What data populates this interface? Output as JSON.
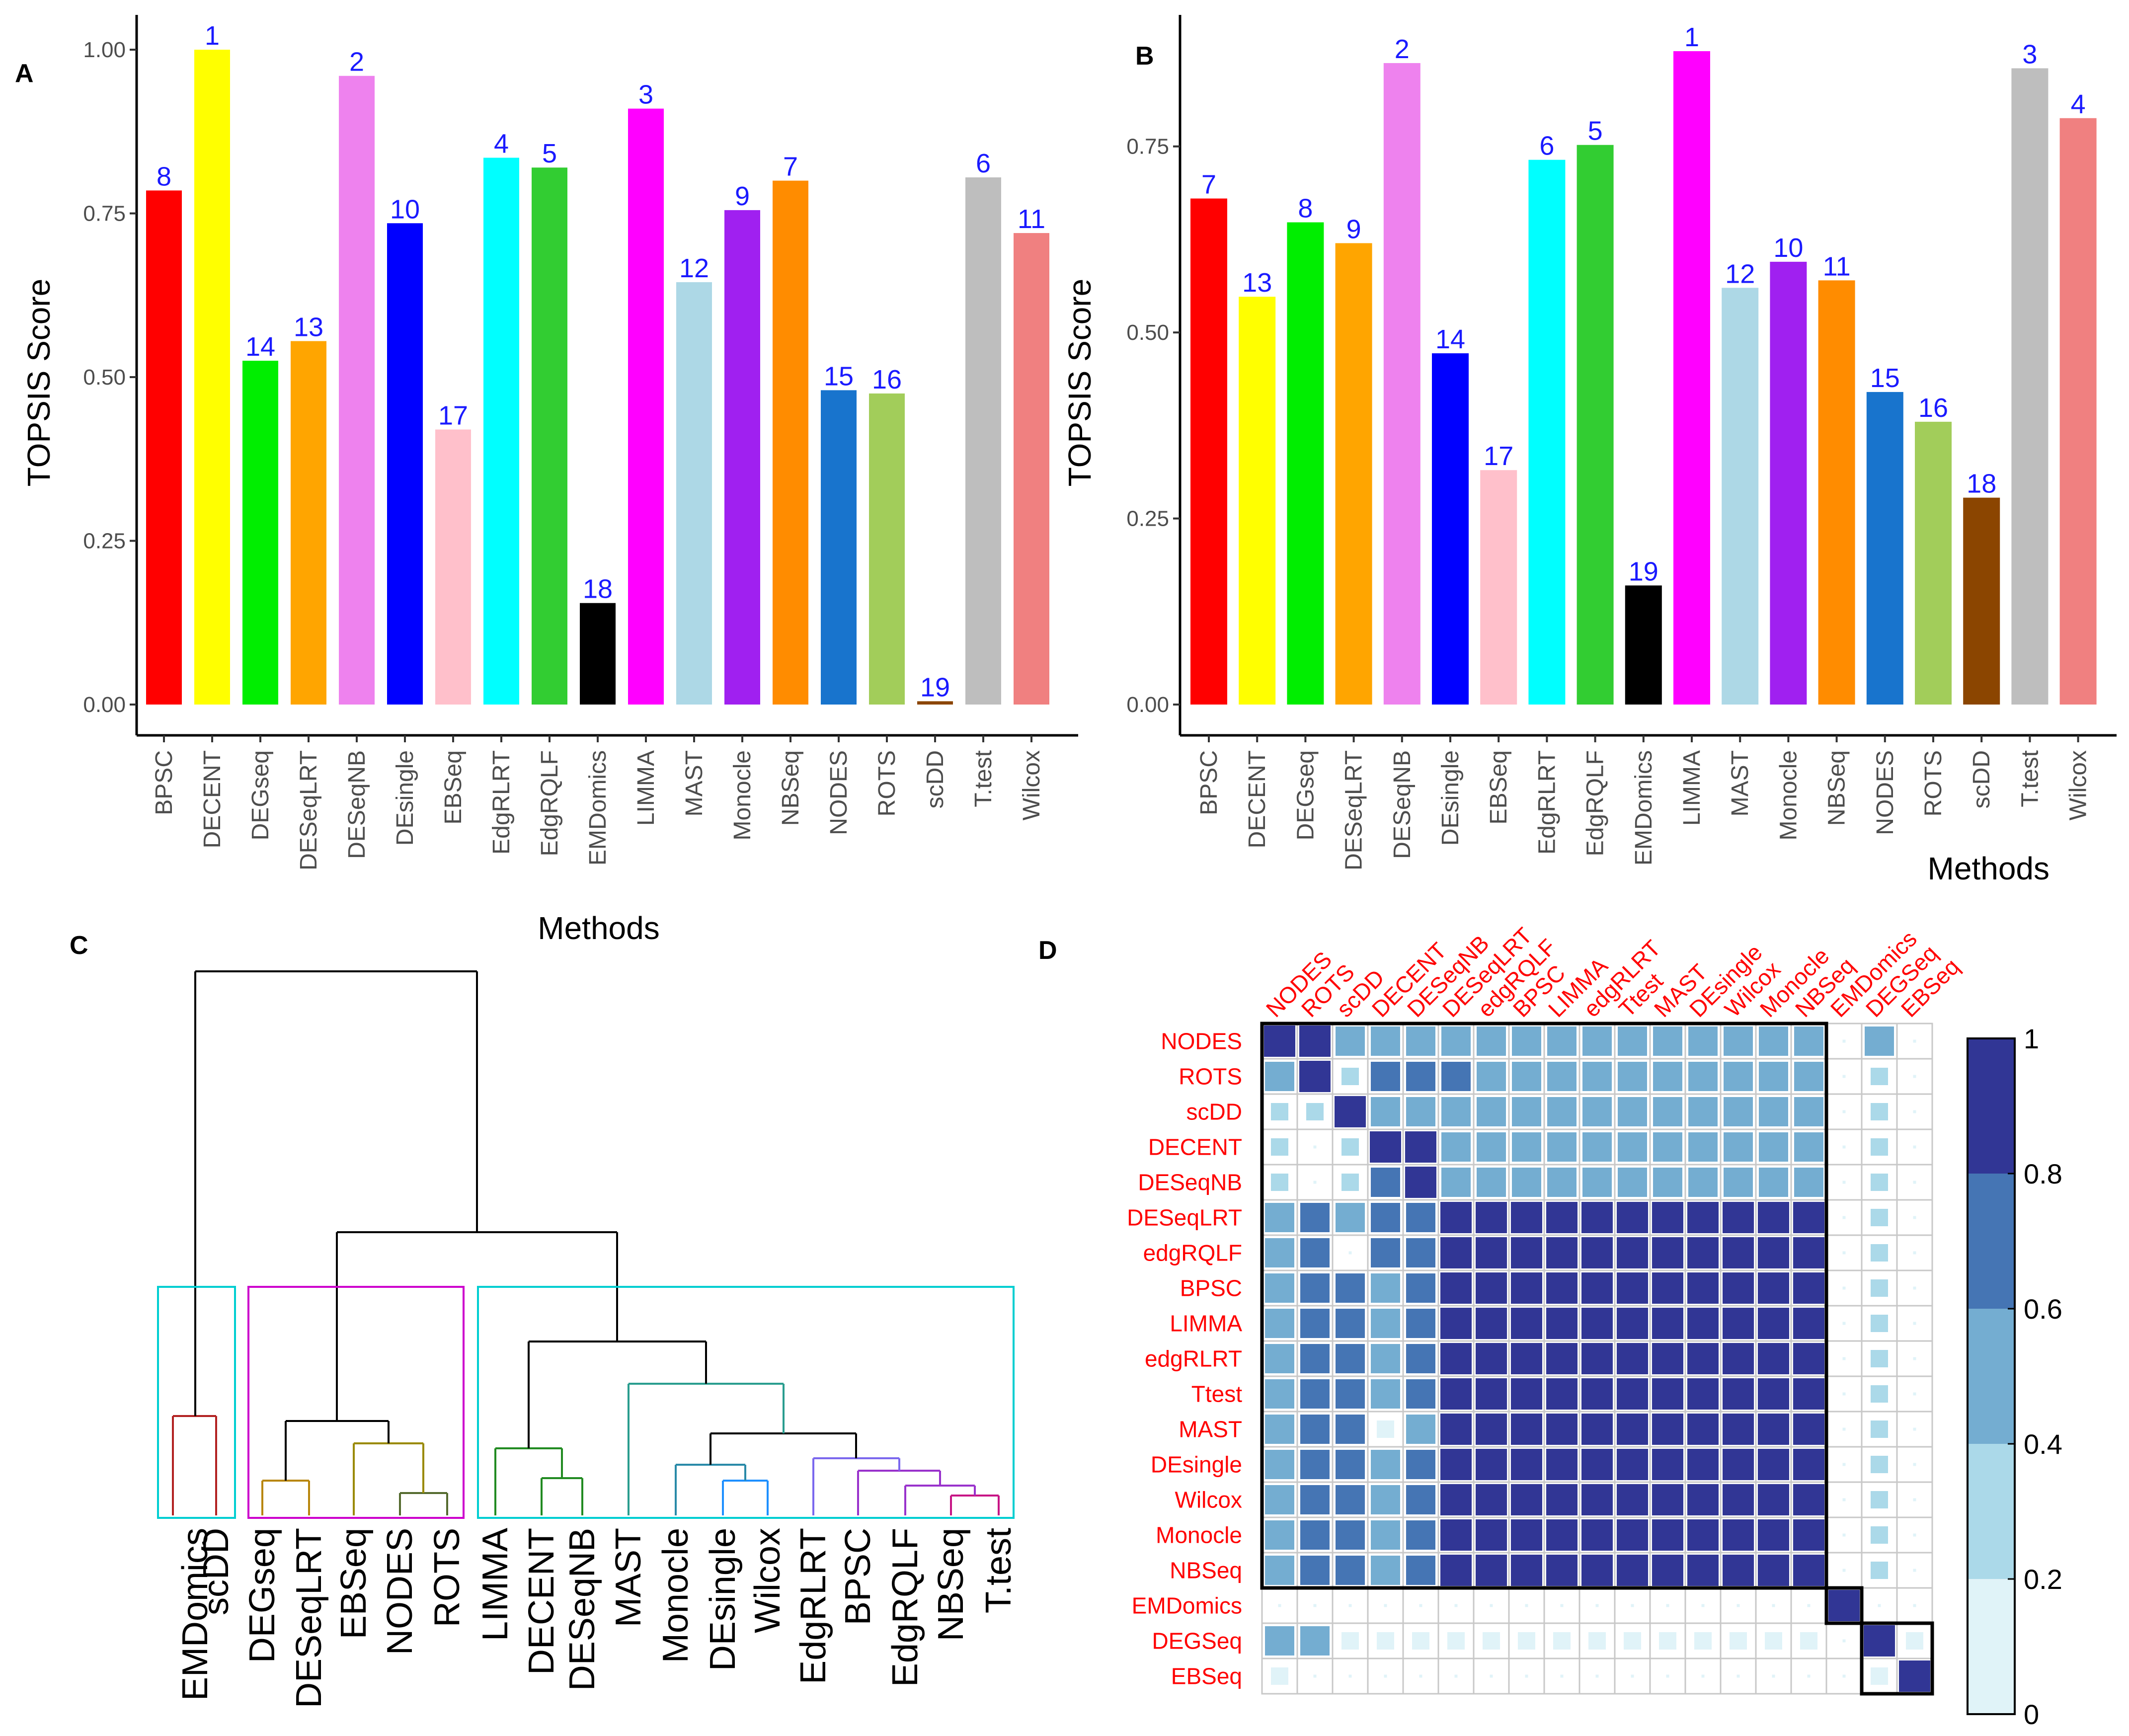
{
  "panels": {
    "a": "A",
    "b": "B",
    "c": "C",
    "d": "D"
  },
  "colors": {
    "BPSC": "#ff0000",
    "DECENT": "#ffff00",
    "DEGseq": "#00ee00",
    "DESeqLRT": "#ffa500",
    "DESeqNB": "#ee82ee",
    "DEsingle": "#0000ff",
    "EBSeq": "#ffc0cb",
    "EdgRLRT": "#00ffff",
    "EdgRQLF": "#32cd32",
    "EMDomics": "#000000",
    "LIMMA": "#ff00ff",
    "MAST": "#add8e6",
    "Monocle": "#a020f0",
    "NBSeq": "#ff8c00",
    "NODES": "#1874cd",
    "ROTS": "#a2cd5a",
    "scDD": "#8b4500",
    "T.test": "#bebebe",
    "Wilcox": "#f08080",
    "rank_label": "#1a1aff",
    "corr_label": "#ff0000"
  },
  "chart_data": [
    {
      "id": "A",
      "type": "bar",
      "xlabel": "Methods",
      "ylabel": "TOPSIS Score",
      "ylim": [
        0,
        1.0
      ],
      "yticks": [
        "0.00",
        "0.25",
        "0.50",
        "0.75",
        "1.00"
      ],
      "categories": [
        "BPSC",
        "DECENT",
        "DEGseq",
        "DESeqLRT",
        "DESeqNB",
        "DEsingle",
        "EBSeq",
        "EdgRLRT",
        "EdgRQLF",
        "EMDomics",
        "LIMMA",
        "MAST",
        "Monocle",
        "NBSeq",
        "NODES",
        "ROTS",
        "scDD",
        "T.test",
        "Wilcox"
      ],
      "values": [
        0.785,
        1.0,
        0.525,
        0.555,
        0.96,
        0.735,
        0.42,
        0.835,
        0.82,
        0.155,
        0.91,
        0.645,
        0.755,
        0.8,
        0.48,
        0.475,
        0.005,
        0.805,
        0.72
      ],
      "ranks": [
        "8",
        "1",
        "14",
        "13",
        "2",
        "10",
        "17",
        "4",
        "5",
        "18",
        "3",
        "12",
        "9",
        "7",
        "15",
        "16",
        "19",
        "6",
        "11"
      ]
    },
    {
      "id": "B",
      "type": "bar",
      "xlabel": "Methods",
      "ylabel": "TOPSIS Score",
      "ylim": [
        0,
        0.88
      ],
      "yticks": [
        "0.00",
        "0.25",
        "0.50",
        "0.75"
      ],
      "categories": [
        "BPSC",
        "DECENT",
        "DEGseq",
        "DESeqLRT",
        "DESeqNB",
        "DEsingle",
        "EBSeq",
        "EdgRLRT",
        "EdgRQLF",
        "EMDomics",
        "LIMMA",
        "MAST",
        "Monocle",
        "NBSeq",
        "NODES",
        "ROTS",
        "scDD",
        "T.test",
        "Wilcox"
      ],
      "values": [
        0.68,
        0.548,
        0.648,
        0.62,
        0.862,
        0.472,
        0.315,
        0.732,
        0.752,
        0.16,
        0.878,
        0.56,
        0.595,
        0.57,
        0.42,
        0.38,
        0.278,
        0.855,
        0.788
      ],
      "ranks": [
        "7",
        "13",
        "8",
        "9",
        "2",
        "14",
        "17",
        "6",
        "5",
        "19",
        "1",
        "12",
        "10",
        "11",
        "15",
        "16",
        "18",
        "3",
        "4"
      ]
    },
    {
      "id": "C",
      "type": "dendrogram",
      "leaves": [
        "EMDomics",
        "scDD",
        "DEGseq",
        "DESeqLRT",
        "EBSeq",
        "NODES",
        "ROTS",
        "LIMMA",
        "DECENT",
        "DESeqNB",
        "MAST",
        "Monocle",
        "DEsingle",
        "Wilcox",
        "EdgRLRT",
        "BPSC",
        "EdgRQLF",
        "NBSeq",
        "T.test"
      ],
      "clusters": [
        {
          "members": [
            "EMDomics",
            "scDD"
          ],
          "box_color": "#00ced1"
        },
        {
          "members": [
            "DEGseq",
            "DESeqLRT",
            "EBSeq",
            "NODES",
            "ROTS"
          ],
          "box_color": "#cd00cd"
        },
        {
          "members": [
            "LIMMA",
            "DECENT",
            "DESeqNB",
            "MAST",
            "Monocle",
            "DEsingle",
            "Wilcox",
            "EdgRLRT",
            "BPSC",
            "EdgRQLF",
            "NBSeq",
            "T.test"
          ],
          "box_color": "#00ced1"
        }
      ]
    },
    {
      "id": "D",
      "type": "heatmap",
      "row_labels": [
        "NODES",
        "ROTS",
        "scDD",
        "DECENT",
        "DESeqNB",
        "DESeqLRT",
        "edgRQLF",
        "BPSC",
        "LIMMA",
        "edgRLRT",
        "Ttest",
        "MAST",
        "DEsingle",
        "Wilcox",
        "Monocle",
        "NBSeq",
        "EMDomics",
        "DEGSeq",
        "EBSeq"
      ],
      "col_labels": [
        "NODES",
        "ROTS",
        "scDD",
        "DECENT",
        "DESeqNB",
        "DESeqLRT",
        "edgRQLF",
        "BPSC",
        "LIMMA",
        "edgRLRT",
        "Ttest",
        "MAST",
        "DEsingle",
        "Wilcox",
        "Monocle",
        "NBSeq",
        "EMDomics",
        "DEGSeq",
        "EBSeq"
      ],
      "legend_ticks": [
        "0",
        "0.2",
        "0.4",
        "0.6",
        "0.8",
        "1"
      ],
      "legend_colors": [
        "#e0f3f8",
        "#abd9e9",
        "#74add1",
        "#4575b4",
        "#313695"
      ]
    }
  ]
}
